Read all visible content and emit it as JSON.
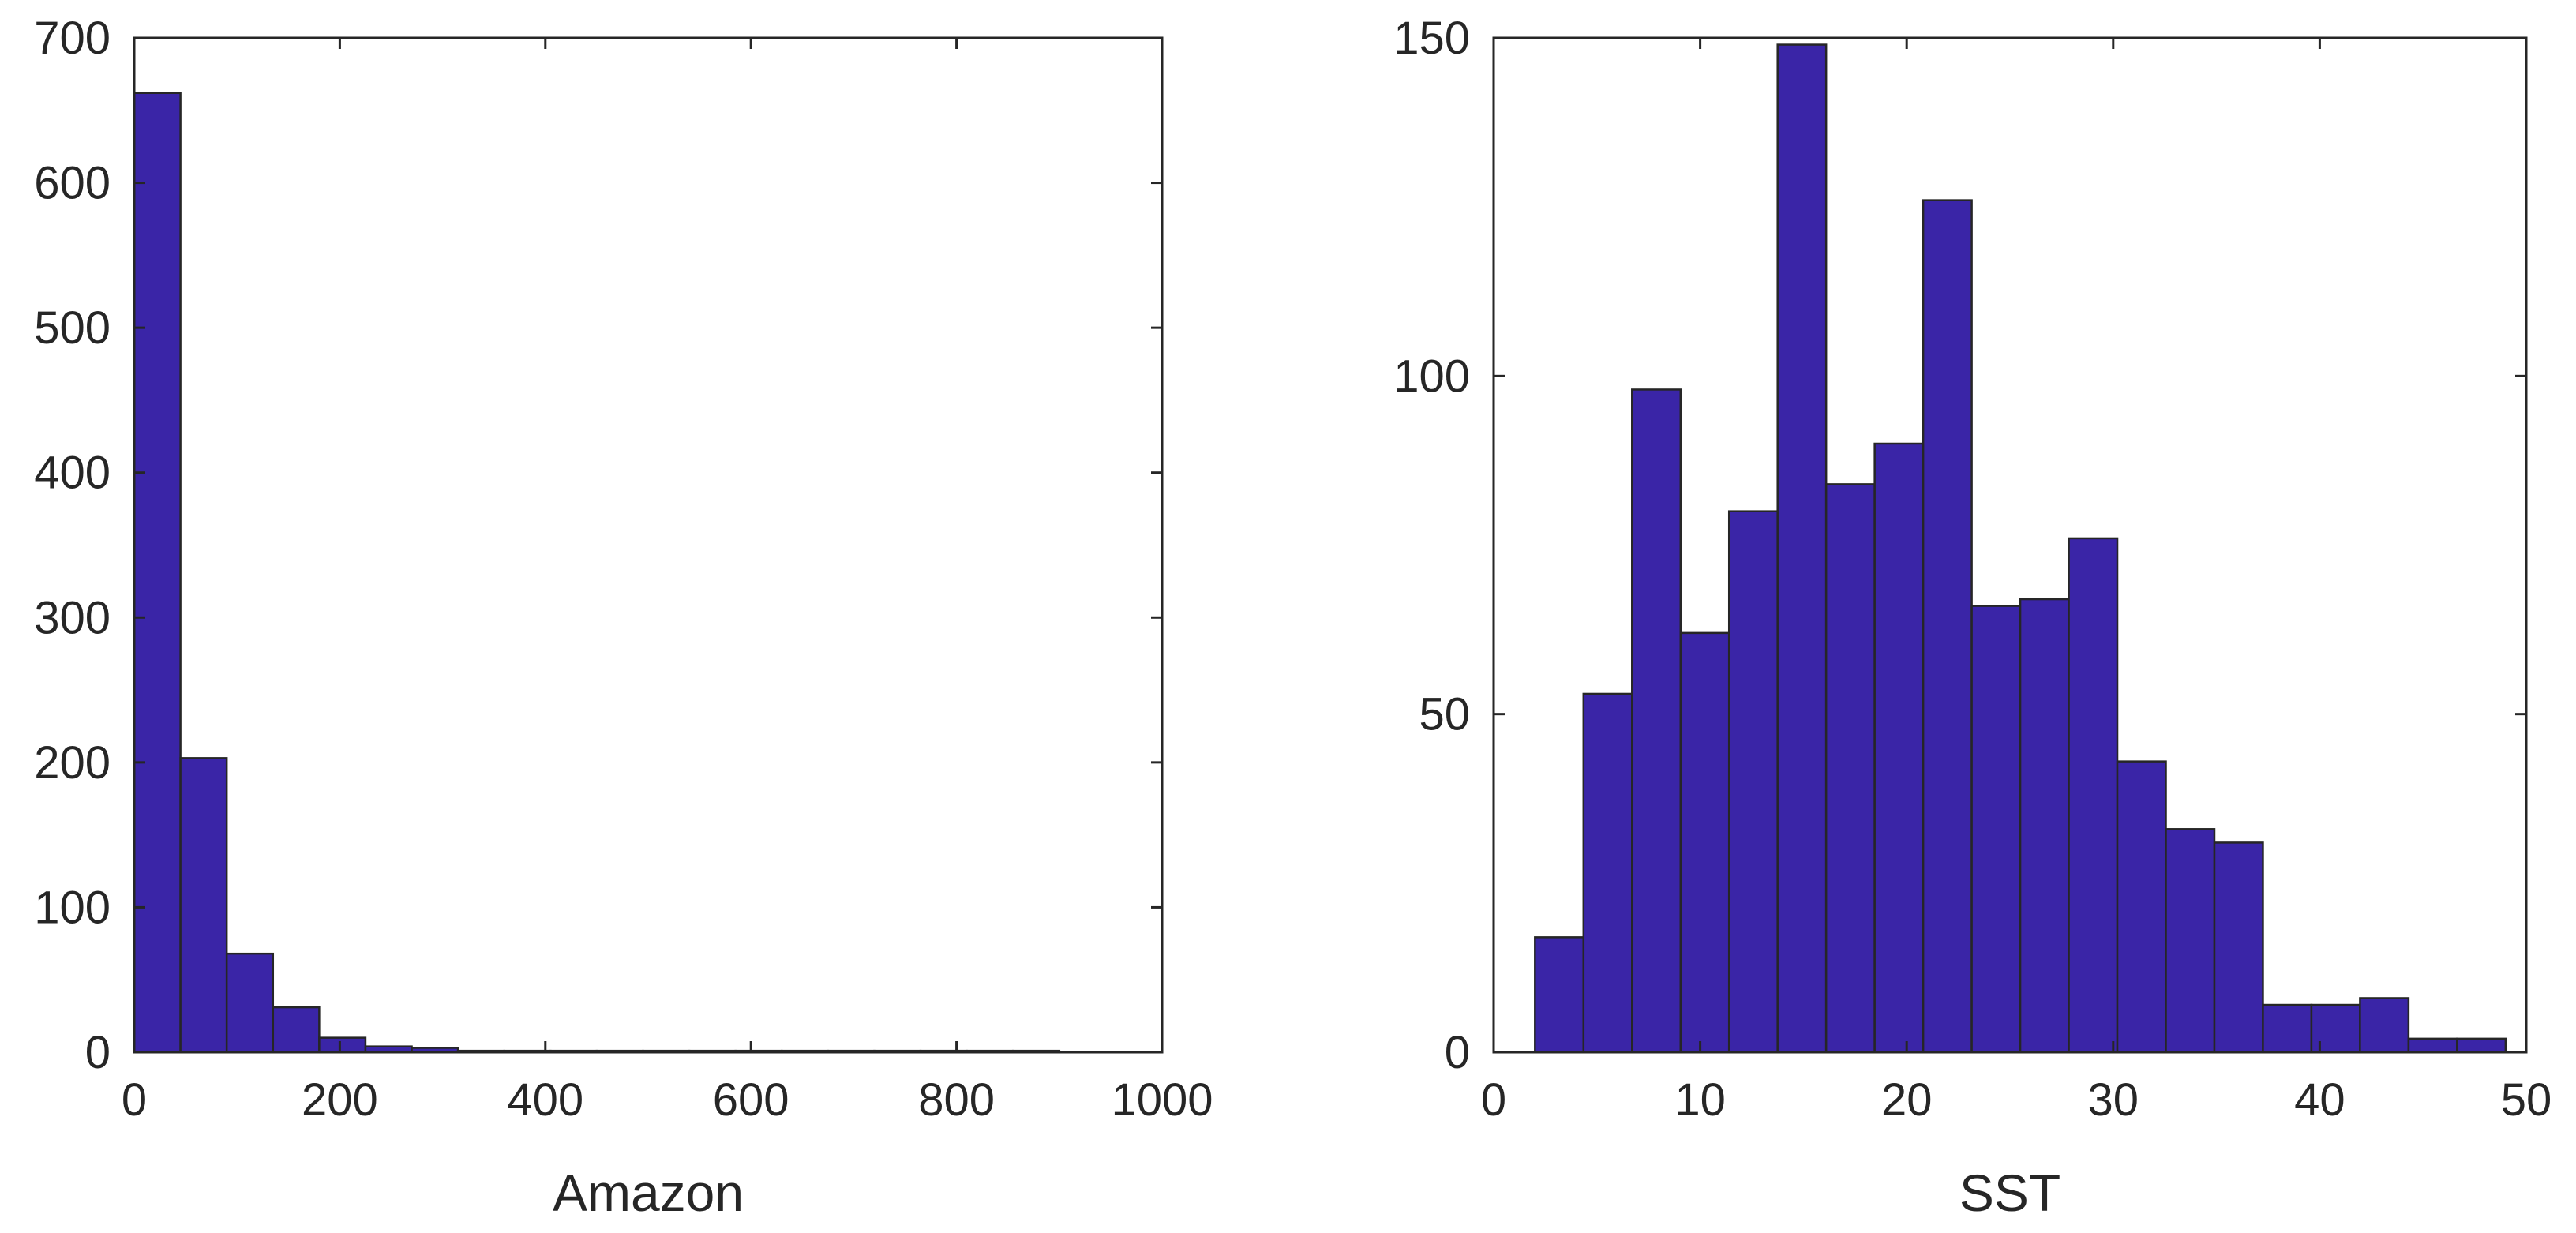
{
  "colors": {
    "bar": "#3A25A7",
    "axis": "#262626",
    "background": "#FFFFFF"
  },
  "chart_data": [
    {
      "type": "bar",
      "subtype": "histogram",
      "xlabel": "Amazon",
      "ylabel": "",
      "xlim": [
        0,
        1000
      ],
      "ylim": [
        0,
        700
      ],
      "xticks": [
        "0",
        "200",
        "400",
        "600",
        "800",
        "1000"
      ],
      "yticks": [
        "0",
        "100",
        "200",
        "300",
        "400",
        "500",
        "600",
        "700"
      ],
      "bin_edges": [
        0,
        45,
        90,
        135,
        180,
        225,
        270,
        315,
        360,
        405,
        450,
        495,
        540,
        585,
        630,
        675,
        720,
        765,
        810,
        855,
        900
      ],
      "values": [
        662,
        203,
        68,
        31,
        10,
        4,
        3,
        1,
        1,
        1,
        1,
        1,
        1,
        1,
        1,
        1,
        1,
        1,
        1,
        1
      ],
      "grid": false
    },
    {
      "type": "bar",
      "subtype": "histogram",
      "xlabel": "SST",
      "ylabel": "",
      "xlim": [
        0,
        50
      ],
      "ylim": [
        0,
        150
      ],
      "xticks": [
        "0",
        "10",
        "20",
        "30",
        "40",
        "50"
      ],
      "yticks": [
        "0",
        "50",
        "100",
        "150"
      ],
      "bin_edges": [
        2,
        4.35,
        6.7,
        9.05,
        11.4,
        13.75,
        16.1,
        18.45,
        20.8,
        23.15,
        25.5,
        27.85,
        30.2,
        32.55,
        34.9,
        37.25,
        39.6,
        41.95,
        44.3,
        46.65,
        49
      ],
      "values": [
        17,
        53,
        98,
        62,
        80,
        149,
        84,
        90,
        126,
        66,
        67,
        76,
        43,
        33,
        31,
        7,
        7,
        8,
        2,
        2
      ],
      "grid": false
    }
  ]
}
